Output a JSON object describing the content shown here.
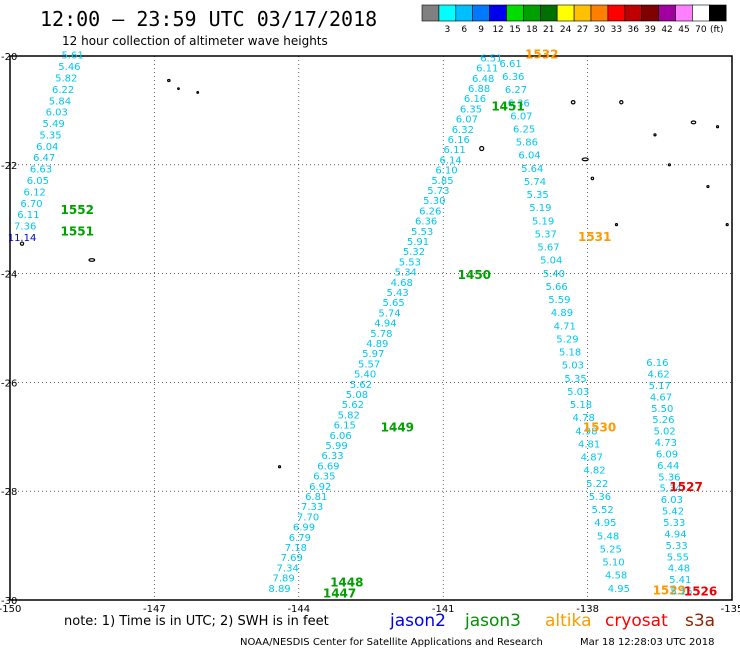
{
  "header": {
    "title": "12:00 — 23:59 UTC 03/17/2018",
    "subtitle": "12 hour collection of altimeter wave heights"
  },
  "legend": {
    "unit_label": "(ft)",
    "swatches": [
      {
        "color": "#808080",
        "label": ""
      },
      {
        "color": "#00ffff",
        "label": "3"
      },
      {
        "color": "#00bfff",
        "label": "6"
      },
      {
        "color": "#0078ff",
        "label": "9"
      },
      {
        "color": "#0000ee",
        "label": "12"
      },
      {
        "color": "#00dd00",
        "label": "15"
      },
      {
        "color": "#00a000",
        "label": "18"
      },
      {
        "color": "#007000",
        "label": "21"
      },
      {
        "color": "#ffff00",
        "label": "24"
      },
      {
        "color": "#ffc000",
        "label": "27"
      },
      {
        "color": "#ff8000",
        "label": "30"
      },
      {
        "color": "#ff0000",
        "label": "33"
      },
      {
        "color": "#c00000",
        "label": "36"
      },
      {
        "color": "#800000",
        "label": "39"
      },
      {
        "color": "#a000a0",
        "label": "42"
      },
      {
        "color": "#ff80ff",
        "label": "45"
      },
      {
        "color": "#ffffff",
        "label": "70"
      },
      {
        "color": "#000000",
        "label": ""
      }
    ]
  },
  "axes": {
    "lon_ticks": [
      "-150",
      "-147",
      "-144",
      "-141",
      "-138",
      "-135"
    ],
    "lat_ticks": [
      "-20",
      "-22",
      "-24",
      "-26",
      "-28",
      "-30"
    ],
    "lon_range": [
      -150,
      -135
    ],
    "lat_range": [
      -30,
      -20
    ]
  },
  "footer": {
    "note": "note: 1) Time is in UTC; 2) SWH is in feet",
    "satellites": [
      {
        "name": "jason2",
        "color": "#0000ee"
      },
      {
        "name": "jason3",
        "color": "#009000"
      },
      {
        "name": "altika",
        "color": "#ff9900"
      },
      {
        "name": "cryosat",
        "color": "#ff0000"
      },
      {
        "name": "s3a",
        "color": "#8b2500"
      }
    ],
    "credit": "NOAA/NESDIS Center for Satellite Applications and Research",
    "timestamp": "Mar 18 12:28:03 UTC 2018"
  },
  "colors": {
    "swh_label": "#00c8f0",
    "jason3": "#00a000",
    "altika": "#ff9900",
    "cryosat": "#ee0000",
    "jason2": "#0000cc"
  },
  "chart_data": {
    "type": "scatter",
    "tracks": [
      {
        "name": "track-a",
        "times": [
          {
            "label": "1552",
            "sat": "jason3"
          },
          {
            "label": "1551",
            "sat": "jason3"
          }
        ],
        "start": [
          -148.7,
          -20.05
        ],
        "end": [
          -149.75,
          -23.4
        ],
        "values": [
          "5.61",
          "5.46",
          "5.82",
          "6.22",
          "5.84",
          "6.03",
          "5.49",
          "5.35",
          "6.04",
          "6.47",
          "6.63",
          "6.05",
          "6.12",
          "6.70",
          "6.11",
          "7.36",
          "11.14"
        ]
      },
      {
        "name": "track-b",
        "times": [
          {
            "label": "1450",
            "sat": "jason3"
          },
          {
            "label": "1449",
            "sat": "jason3"
          },
          {
            "label": "1448",
            "sat": "jason3"
          },
          {
            "label": "1447",
            "sat": "jason3"
          }
        ],
        "start": [
          -140.0,
          -20.1
        ],
        "end": [
          -144.4,
          -29.85
        ],
        "values": [
          "6.51",
          "6.11",
          "6.48",
          "6.88",
          "6.16",
          "6.35",
          "6.07",
          "6.32",
          "6.16",
          "6.11",
          "6.14",
          "6.10",
          "5.85",
          "5.73",
          "5.30",
          "6.26",
          "6.36",
          "5.53",
          "5.91",
          "5.32",
          "5.53",
          "5.34",
          "4.68",
          "5.43",
          "5.65",
          "5.74",
          "4.94",
          "5.78",
          "4.89",
          "5.97",
          "5.57",
          "5.40",
          "5.62",
          "5.08",
          "5.62",
          "5.82",
          "6.15",
          "6.06",
          "5.99",
          "6.33",
          "6.69",
          "6.35",
          "6.92",
          "6.81",
          "7.33",
          "7.70",
          "6.99",
          "6.79",
          "7.18",
          "7.69",
          "7.34",
          "7.89",
          "8.89"
        ]
      },
      {
        "name": "track-c",
        "times": [
          {
            "label": "1532",
            "sat": "altika"
          },
          {
            "label": "1451",
            "sat": "jason3"
          },
          {
            "label": "1531",
            "sat": "altika"
          },
          {
            "label": "1530",
            "sat": "altika"
          },
          {
            "label": "1529",
            "sat": "altika"
          }
        ],
        "start": [
          -139.6,
          -20.2
        ],
        "end": [
          -137.35,
          -29.85
        ],
        "values": [
          "6.61",
          "6.36",
          "6.27",
          "6.36",
          "6.07",
          "6.25",
          "5.86",
          "6.04",
          "5.64",
          "5.74",
          "5.35",
          "5.19",
          "5.19",
          "5.37",
          "5.67",
          "5.04",
          "5.40",
          "5.66",
          "5.59",
          "4.89",
          "4.71",
          "5.29",
          "5.18",
          "5.03",
          "5.35",
          "5.03",
          "5.18",
          "4.78",
          "4.98",
          "4.81",
          "4.87",
          "4.82",
          "5.22",
          "5.36",
          "5.52",
          "4.95",
          "5.48",
          "5.25",
          "5.10",
          "4.58",
          "4.95"
        ]
      },
      {
        "name": "track-d",
        "times": [
          {
            "label": "1527",
            "sat": "cryosat"
          },
          {
            "label": "1526",
            "sat": "cryosat"
          }
        ],
        "start": [
          -136.55,
          -25.7
        ],
        "end": [
          -136.05,
          -29.9
        ],
        "values": [
          "6.16",
          "4.62",
          "5.17",
          "4.67",
          "5.50",
          "5.26",
          "5.02",
          "4.73",
          "6.09",
          "6.44",
          "5.36",
          "5.34",
          "6.03",
          "5.42",
          "5.33",
          "4.94",
          "5.33",
          "5.55",
          "4.48",
          "5.41",
          "5.15"
        ]
      }
    ]
  }
}
